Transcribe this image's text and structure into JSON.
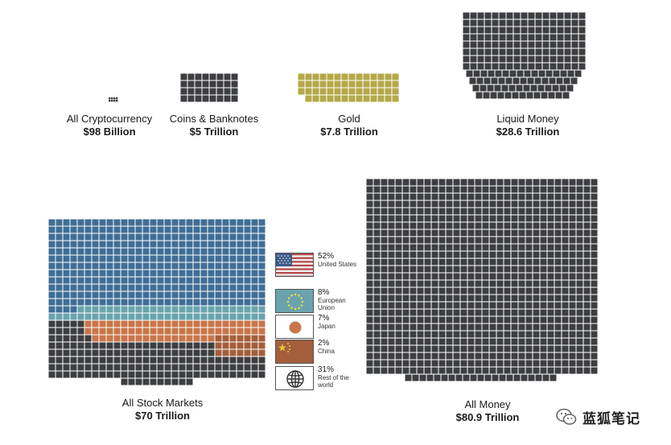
{
  "chart_data": {
    "type": "waffle",
    "unit_cell_value_billion": 98,
    "colors": {
      "dark": "#3d3e41",
      "gold": "#b5a84a",
      "us": "#3f6e96",
      "eu": "#6aa3ae",
      "japan": "#c8764a",
      "china": "#a45e3c"
    },
    "items": [
      {
        "id": "crypto",
        "name": "All Cryptocurrency",
        "value_label": "$98 Billion",
        "value_trillion": 0.098,
        "color": "dark"
      },
      {
        "id": "coins",
        "name": "Coins & Banknotes",
        "value_label": "$5 Trillion",
        "value_trillion": 5,
        "color": "dark"
      },
      {
        "id": "gold",
        "name": "Gold",
        "value_label": "$7.8 Trillion",
        "value_trillion": 7.8,
        "color": "gold"
      },
      {
        "id": "liquid",
        "name": "Liquid Money",
        "value_label": "$28.6 Trillion",
        "value_trillion": 28.6,
        "color": "dark"
      },
      {
        "id": "stocks",
        "name": "All Stock Markets",
        "value_label": "$70 Trillion",
        "value_trillion": 70,
        "color": "dark"
      },
      {
        "id": "money",
        "name": "All Money",
        "value_label": "$80.9 Trillion",
        "value_trillion": 80.9,
        "color": "dark"
      }
    ],
    "stock_breakdown": [
      {
        "id": "us",
        "percent_label": "52%",
        "percent": 52,
        "region": "United States",
        "color": "us",
        "flag_icon": "us-flag-icon"
      },
      {
        "id": "eu",
        "percent_label": "8%",
        "percent": 8,
        "region": "European Union",
        "color": "eu",
        "flag_icon": "eu-flag-icon"
      },
      {
        "id": "japan",
        "percent_label": "7%",
        "percent": 7,
        "region": "Japan",
        "color": "japan",
        "flag_icon": "japan-flag-icon"
      },
      {
        "id": "china",
        "percent_label": "2%",
        "percent": 2,
        "region": "China",
        "color": "china",
        "flag_icon": "china-flag-icon"
      },
      {
        "id": "rest",
        "percent_label": "31%",
        "percent": 31,
        "region": "Rest of the world",
        "color": "dark",
        "flag_icon": "globe-icon"
      }
    ]
  },
  "watermark": {
    "text": "蓝狐笔记",
    "icon": "wechat-icon"
  }
}
